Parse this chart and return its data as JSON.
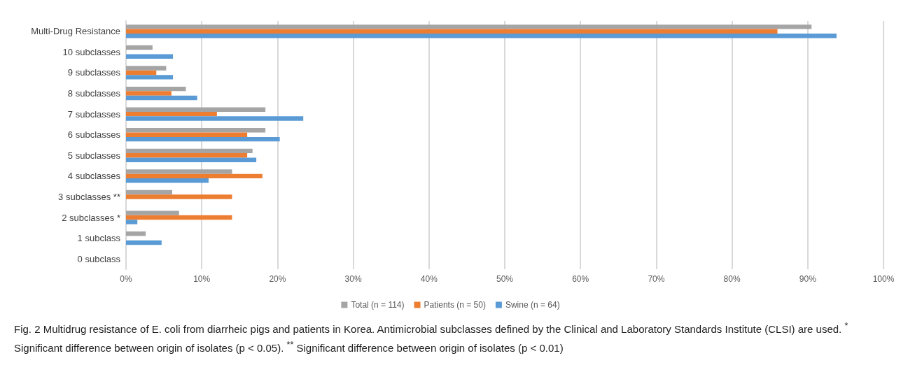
{
  "chart_data": {
    "type": "bar",
    "orientation": "horizontal",
    "categories": [
      "Multi-Drug Resistance",
      "10 subclasses",
      "9 subclasses",
      "8 subclasses",
      "7 subclasses",
      "6 subclasses",
      "5 subclasses",
      "4 subclasses",
      "3 subclasses **",
      "2 subclasses *",
      "1 subclass",
      "0 subclass"
    ],
    "series": [
      {
        "name": "Total (n = 114)",
        "color": "#a5a5a5",
        "values": [
          90.5,
          3.5,
          5.3,
          7.9,
          18.4,
          18.4,
          16.7,
          14.0,
          6.1,
          7.0,
          2.6,
          0
        ]
      },
      {
        "name": "Patients (n = 50)",
        "color": "#ed7d31",
        "values": [
          86,
          0,
          4,
          6,
          12,
          16,
          16,
          18,
          14,
          14,
          0,
          0
        ]
      },
      {
        "name": "Swine (n = 64)",
        "color": "#5b9bd5",
        "values": [
          93.8,
          6.2,
          6.2,
          9.4,
          23.4,
          20.3,
          17.2,
          10.9,
          0,
          1.5,
          4.7,
          0
        ]
      }
    ],
    "xlim": [
      0,
      100
    ],
    "xticks": [
      {
        "value": 0,
        "label": "0%"
      },
      {
        "value": 10,
        "label": "10%"
      },
      {
        "value": 20,
        "label": "20%"
      },
      {
        "value": 30,
        "label": "30%"
      },
      {
        "value": 40,
        "label": "40%"
      },
      {
        "value": 50,
        "label": "50%"
      },
      {
        "value": 60,
        "label": "60%"
      },
      {
        "value": 70,
        "label": "70%"
      },
      {
        "value": 80,
        "label": "80%"
      },
      {
        "value": 90,
        "label": "90%"
      },
      {
        "value": 100,
        "label": "100%"
      }
    ],
    "grid": "x",
    "legend": "bottom",
    "annotations": [
      "Fig. 2  Multidrug resistance of E. coli from diarrheic pigs and patients in Korea. Antimicrobial subclasses defined by the Clinical and Laboratory Standards Institute (CLSI) are used. $^{*}$ Significant difference between origin of isolates (p < 0.05). $^{**}$ Significant difference between origin of isolates (p < 0.01)"
    ]
  }
}
